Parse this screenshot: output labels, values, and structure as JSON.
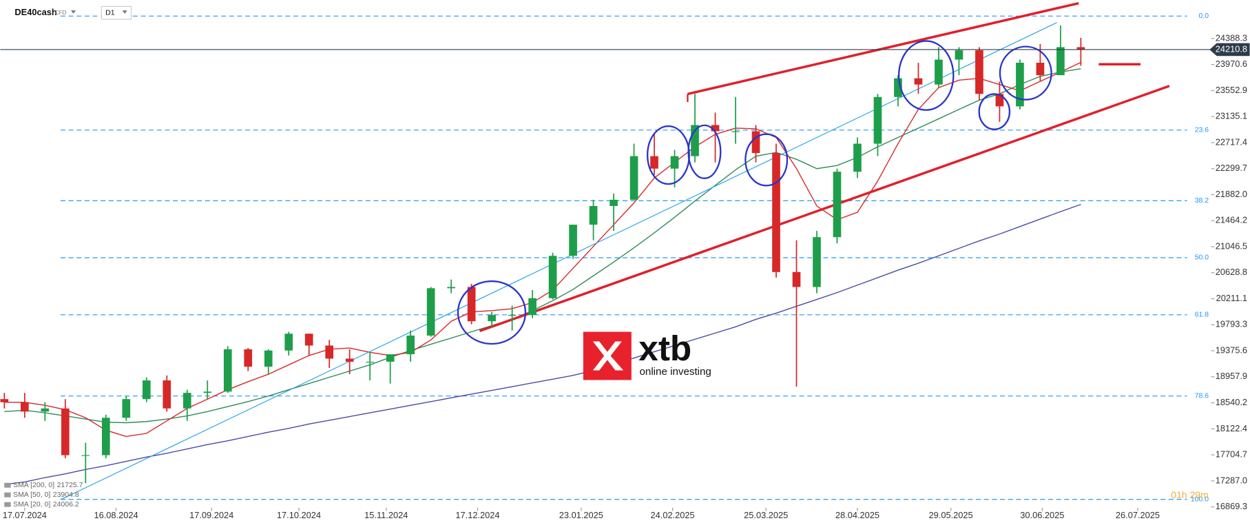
{
  "header": {
    "symbol": "DE40cash",
    "instrument": "CFD",
    "timeframe": "D1"
  },
  "logo": {
    "brand": "xtb",
    "tagline": "online investing"
  },
  "countdown": "01h 29m",
  "chart_data": {
    "type": "candlestick",
    "xlim": [
      -0.2,
      59.1
    ],
    "ylim": [
      16856,
      25007
    ],
    "xticks": [
      {
        "value": 1.0,
        "label": "17.07.2024"
      },
      {
        "value": 5.5,
        "label": "16.08.2024"
      },
      {
        "value": 10.2,
        "label": "17.09.2024"
      },
      {
        "value": 14.5,
        "label": "17.10.2024"
      },
      {
        "value": 18.8,
        "label": "15.11.2024"
      },
      {
        "value": 23.3,
        "label": "17.12.2024"
      },
      {
        "value": 28.4,
        "label": "23.01.2025"
      },
      {
        "value": 32.9,
        "label": "24.02.2025"
      },
      {
        "value": 37.5,
        "label": "25.03.2025"
      },
      {
        "value": 42.0,
        "label": "28.04.2025"
      },
      {
        "value": 46.6,
        "label": "29.05.2025"
      },
      {
        "value": 51.1,
        "label": "30.06.2025"
      },
      {
        "value": 55.8,
        "label": "26.07.2025"
      }
    ],
    "yticks": [
      24388.3,
      23970.6,
      23552.9,
      23135.1,
      22717.4,
      22299.7,
      {
        "value": 21882,
        "label": "21882.0"
      },
      21464.2,
      21046.5,
      20628.8,
      20211.1,
      19793.3,
      19375.6,
      18957.9,
      18540.2,
      18122.4,
      17704.7,
      {
        "value": 17287,
        "label": "17287.0"
      },
      16869.3
    ],
    "last_price": 24210.8,
    "up_color": "#1e9e4a",
    "down_color": "#d62828",
    "open": [
      18600,
      18550,
      18400,
      18450,
      17700,
      17700,
      18300,
      18600,
      18900,
      18450,
      18700,
      18720,
      19400,
      19120,
      19380,
      19650,
      19460,
      19250,
      19200,
      19200,
      19320,
      19620,
      20380,
      20400,
      19850,
      19950,
      19950,
      20220,
      20900,
      21400,
      21700,
      21800,
      22500,
      22300,
      22500,
      23000,
      22900,
      22900,
      22550,
      20640,
      20400,
      21200,
      22250,
      22700,
      23450,
      23750,
      23650,
      24050,
      24200,
      23500,
      23300,
      24000,
      23800,
      24250
    ],
    "high": [
      18700,
      18700,
      18550,
      18600,
      17900,
      18350,
      18650,
      18950,
      18980,
      18750,
      18900,
      19450,
      19420,
      19400,
      19680,
      19650,
      19550,
      19400,
      19350,
      19300,
      19700,
      20400,
      20520,
      20450,
      20000,
      20100,
      20350,
      20950,
      21400,
      21800,
      21900,
      22700,
      22850,
      22600,
      23500,
      23200,
      23450,
      23000,
      22700,
      21150,
      21300,
      22300,
      22800,
      23500,
      23800,
      24000,
      24250,
      24250,
      24250,
      23700,
      24050,
      24300,
      24600,
      24400
    ],
    "low": [
      18450,
      18300,
      18250,
      17650,
      17250,
      17650,
      18250,
      18550,
      18400,
      18250,
      18600,
      18700,
      19050,
      19000,
      19300,
      19300,
      19100,
      19000,
      18900,
      18850,
      19200,
      19600,
      20300,
      19800,
      19750,
      19700,
      19900,
      20200,
      20850,
      21150,
      21300,
      21800,
      22200,
      22000,
      22400,
      22400,
      22700,
      22400,
      20550,
      18800,
      20300,
      21100,
      22150,
      22500,
      23300,
      23500,
      23600,
      23800,
      23400,
      23050,
      23250,
      23700,
      23800,
      23950
    ],
    "close": [
      18550,
      18400,
      18450,
      17700,
      17700,
      18300,
      18600,
      18900,
      18450,
      18700,
      18720,
      19400,
      19120,
      19380,
      19650,
      19460,
      19250,
      19200,
      19200,
      19320,
      19620,
      20380,
      20400,
      19850,
      19950,
      19950,
      20220,
      20900,
      21400,
      21700,
      21800,
      22500,
      22300,
      22500,
      23000,
      22900,
      22900,
      22550,
      20640,
      20400,
      21200,
      22250,
      22700,
      23450,
      23750,
      23650,
      24050,
      24200,
      23500,
      23300,
      24000,
      23800,
      24250,
      24210.8
    ],
    "series": [
      {
        "name": "SMA [200, 0]",
        "color": "#4a4aa6",
        "values": [
          17230,
          17270,
          17340,
          17400,
          17470,
          17530,
          17600,
          17670,
          17730,
          17800,
          17870,
          17930,
          18000,
          18070,
          18130,
          18200,
          18260,
          18320,
          18380,
          18440,
          18500,
          18560,
          18620,
          18680,
          18740,
          18800,
          18860,
          18920,
          18980,
          19060,
          19160,
          19260,
          19360,
          19460,
          19560,
          19660,
          19760,
          19880,
          19980,
          20090,
          20200,
          20310,
          20430,
          20550,
          20670,
          20780,
          20900,
          21020,
          21140,
          21250,
          21370,
          21490,
          21610,
          21725.7
        ]
      },
      {
        "name": "SMA [50, 0]",
        "color": "#2e8b57",
        "values": [
          18400,
          18420,
          18380,
          18330,
          18280,
          18230,
          18220,
          18240,
          18280,
          18330,
          18400,
          18480,
          18560,
          18650,
          18750,
          18850,
          18950,
          19050,
          19150,
          19270,
          19380,
          19480,
          19580,
          19680,
          19780,
          19880,
          20020,
          20180,
          20360,
          20580,
          20800,
          21030,
          21270,
          21520,
          21780,
          22030,
          22280,
          22500,
          22560,
          22450,
          22300,
          22350,
          22480,
          22650,
          22800,
          22950,
          23100,
          23250,
          23400,
          23500,
          23650,
          23780,
          23850,
          23904.8
        ]
      },
      {
        "name": "SMA [20, 0]",
        "color": "#d62828",
        "values": [
          18550,
          18550,
          18500,
          18430,
          18300,
          18100,
          18000,
          18050,
          18250,
          18450,
          18600,
          18750,
          18880,
          19000,
          19150,
          19300,
          19400,
          19420,
          19350,
          19300,
          19350,
          19550,
          19850,
          20000,
          20020,
          20050,
          20150,
          20350,
          20700,
          21050,
          21400,
          21750,
          22150,
          22400,
          22650,
          22850,
          22950,
          22940,
          22800,
          22300,
          21700,
          21480,
          21600,
          22100,
          22700,
          23250,
          23600,
          23720,
          23750,
          23650,
          23550,
          23700,
          23850,
          24006.2
        ]
      }
    ],
    "fibonacci": [
      {
        "label": "0.0",
        "value": 24749
      },
      {
        "label": "23.6",
        "value": 22918
      },
      {
        "label": "38.2",
        "value": 21785
      },
      {
        "label": "50.0",
        "value": 20870
      },
      {
        "label": "61.8",
        "value": 19954
      },
      {
        "label": "78.6",
        "value": 18650
      },
      {
        "label": "100.0",
        "value": 16990
      }
    ]
  }
}
